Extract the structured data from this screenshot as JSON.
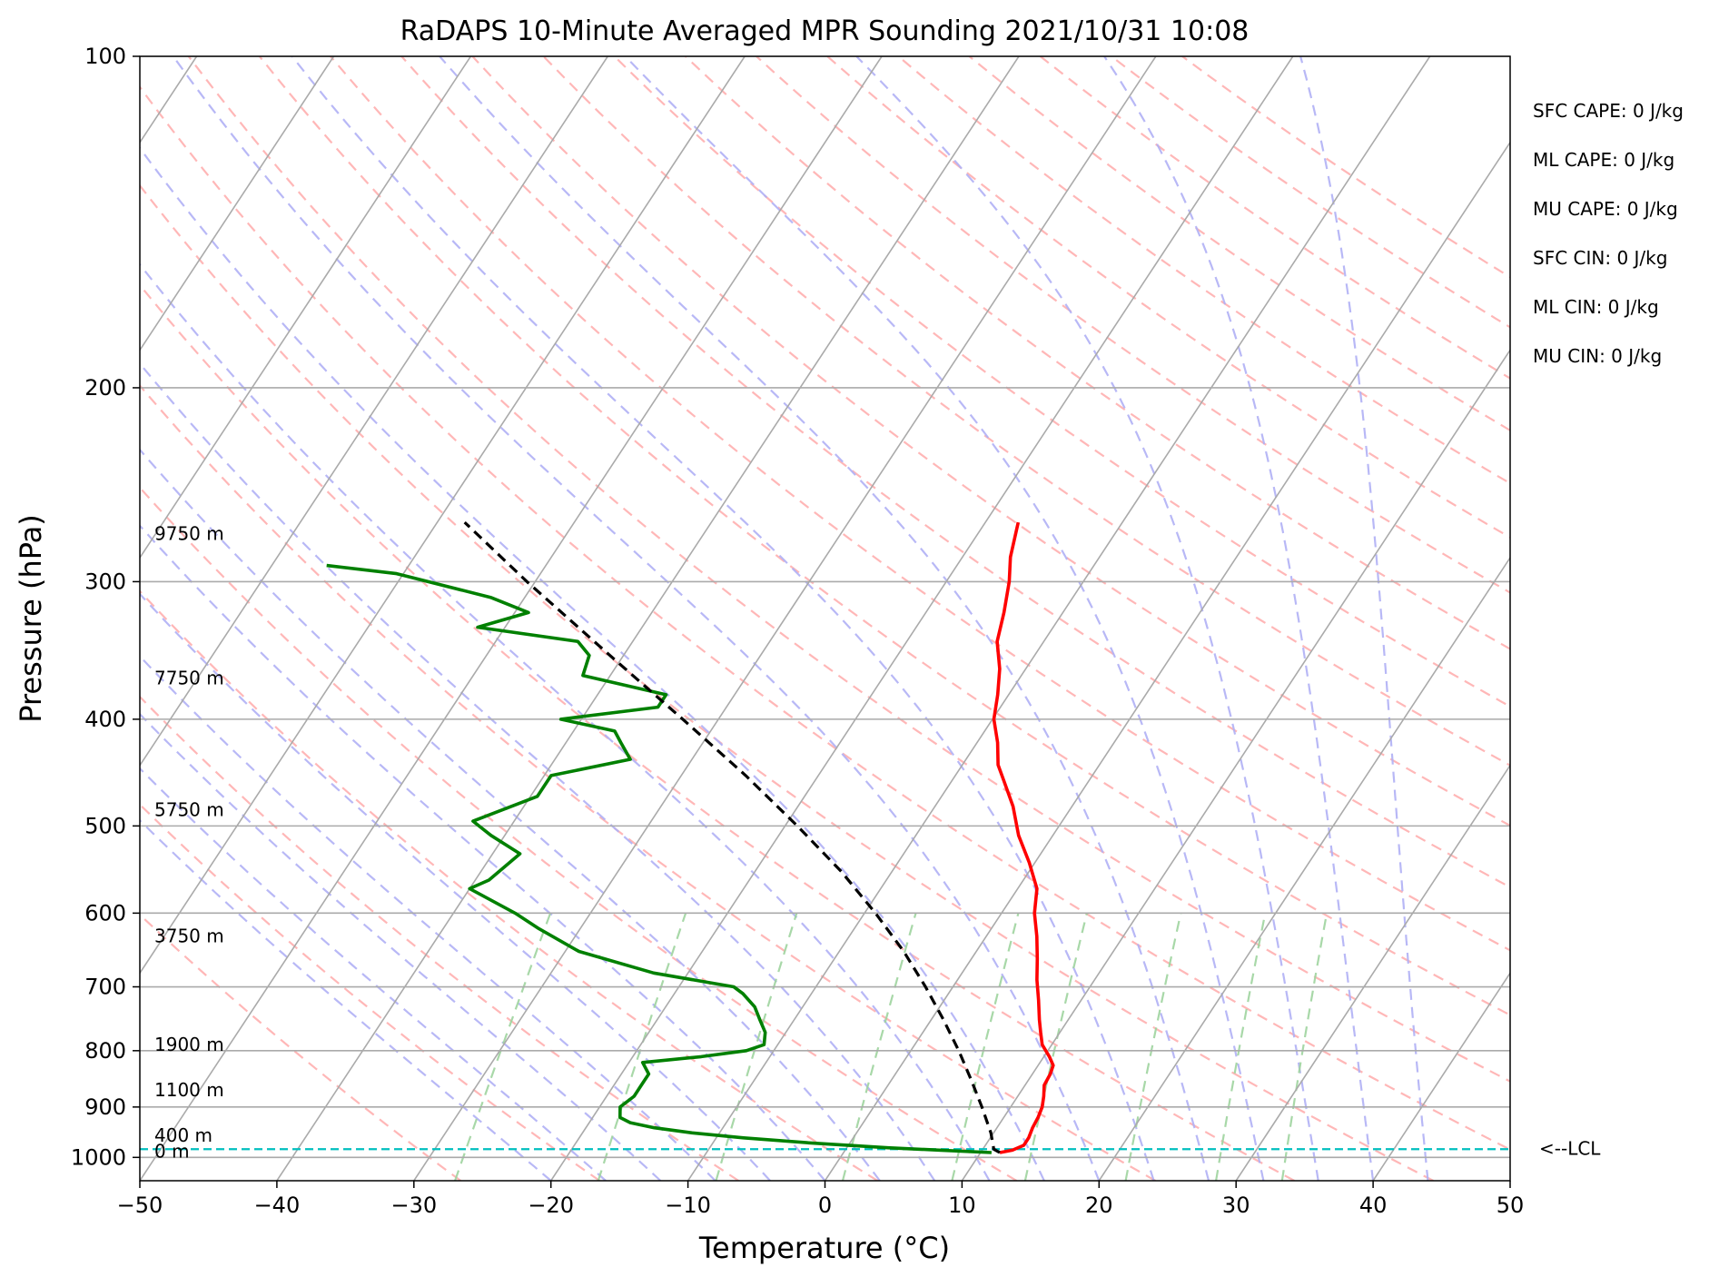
{
  "chart_data": {
    "type": "line",
    "title": "RaDAPS 10-Minute Averaged MPR Sounding 2021/10/31 10:08",
    "xlabel": "Temperature (°C)",
    "ylabel": "Pressure (hPa)",
    "xlim": [
      -50,
      50
    ],
    "ylim": [
      1050,
      100
    ],
    "y_scale": "log",
    "skew_t": true,
    "grid": true,
    "x_ticks": [
      -50,
      -40,
      -30,
      -20,
      -10,
      0,
      10,
      20,
      30,
      40,
      50
    ],
    "x_tick_labels": [
      "−50",
      "−40",
      "−30",
      "−20",
      "−10",
      "0",
      "10",
      "20",
      "30",
      "40",
      "50"
    ],
    "y_ticks": [
      100,
      200,
      300,
      400,
      500,
      600,
      700,
      800,
      900,
      1000
    ],
    "y_tick_labels": [
      "100",
      "200",
      "300",
      "400",
      "500",
      "600",
      "700",
      "800",
      "900",
      "1000"
    ],
    "height_labels": [
      {
        "text": "9750 m",
        "p": 275
      },
      {
        "text": "7750 m",
        "p": 372
      },
      {
        "text": "5750 m",
        "p": 490
      },
      {
        "text": "3750 m",
        "p": 638
      },
      {
        "text": "1900 m",
        "p": 800
      },
      {
        "text": "1100 m",
        "p": 880
      },
      {
        "text": "400 m",
        "p": 968
      },
      {
        "text": "0 m",
        "p": 1000
      }
    ],
    "indices": [
      "SFC CAPE: 0 J/kg",
      "ML CAPE: 0 J/kg",
      "MU CAPE: 0 J/kg",
      "SFC CIN: 0 J/kg",
      "ML CIN: 0 J/kg",
      "MU CIN: 0 J/kg"
    ],
    "lcl": {
      "label": "<--LCL",
      "p": 983
    },
    "colors": {
      "temperature": "#ff0000",
      "dewpoint": "#008000",
      "parcel": "#000000",
      "lcl": "#00bfbf",
      "isotherm": "#aaaaaa",
      "dry_adiabat": "#ffaaaa",
      "moist_adiabat": "#b0b0f5",
      "mixing_ratio": "#9fd49f"
    },
    "series": [
      {
        "key": "temperature",
        "points": [
          [
            990,
            11.4
          ],
          [
            985,
            12.2
          ],
          [
            975,
            12.8
          ],
          [
            960,
            12.8
          ],
          [
            940,
            12.6
          ],
          [
            920,
            12.5
          ],
          [
            900,
            12.3
          ],
          [
            880,
            11.9
          ],
          [
            860,
            11.4
          ],
          [
            840,
            11.3
          ],
          [
            825,
            11.1
          ],
          [
            810,
            10.4
          ],
          [
            790,
            9.3
          ],
          [
            770,
            8.6
          ],
          [
            750,
            7.9
          ],
          [
            720,
            6.9
          ],
          [
            690,
            5.8
          ],
          [
            660,
            4.8
          ],
          [
            630,
            3.7
          ],
          [
            600,
            2.4
          ],
          [
            570,
            1.4
          ],
          [
            540,
            -0.4
          ],
          [
            510,
            -2.5
          ],
          [
            480,
            -4.3
          ],
          [
            455,
            -6.2
          ],
          [
            440,
            -7.4
          ],
          [
            420,
            -8.5
          ],
          [
            400,
            -9.9
          ],
          [
            380,
            -10.8
          ],
          [
            360,
            -11.9
          ],
          [
            340,
            -13.4
          ],
          [
            320,
            -14.3
          ],
          [
            300,
            -15.4
          ],
          [
            285,
            -16.5
          ],
          [
            265,
            -17.6
          ]
        ]
      },
      {
        "key": "dewpoint",
        "points": [
          [
            990,
            10.8
          ],
          [
            985,
            7.0
          ],
          [
            980,
            3.0
          ],
          [
            970,
            -3.0
          ],
          [
            960,
            -8.0
          ],
          [
            950,
            -12.0
          ],
          [
            940,
            -15.0
          ],
          [
            930,
            -17.0
          ],
          [
            920,
            -18.0
          ],
          [
            900,
            -18.5
          ],
          [
            880,
            -18.0
          ],
          [
            860,
            -18.0
          ],
          [
            840,
            -18.0
          ],
          [
            820,
            -19.0
          ],
          [
            810,
            -15.0
          ],
          [
            800,
            -12.0
          ],
          [
            790,
            -11.0
          ],
          [
            770,
            -11.5
          ],
          [
            750,
            -12.5
          ],
          [
            730,
            -13.5
          ],
          [
            710,
            -15.0
          ],
          [
            700,
            -16.0
          ],
          [
            680,
            -22.5
          ],
          [
            650,
            -29.0
          ],
          [
            620,
            -33.0
          ],
          [
            600,
            -35.5
          ],
          [
            570,
            -40.0
          ],
          [
            560,
            -39.0
          ],
          [
            530,
            -38.0
          ],
          [
            510,
            -41.0
          ],
          [
            495,
            -43.0
          ],
          [
            470,
            -39.5
          ],
          [
            450,
            -39.5
          ],
          [
            435,
            -34.5
          ],
          [
            420,
            -36.0
          ],
          [
            410,
            -37.0
          ],
          [
            400,
            -41.5
          ],
          [
            390,
            -35.0
          ],
          [
            380,
            -35.0
          ],
          [
            365,
            -42.0
          ],
          [
            350,
            -42.5
          ],
          [
            340,
            -44.0
          ],
          [
            330,
            -52.0
          ],
          [
            320,
            -49.0
          ],
          [
            310,
            -52.5
          ],
          [
            295,
            -60.5
          ],
          [
            290,
            -66.0
          ]
        ]
      },
      {
        "key": "parcel",
        "points": [
          [
            990,
            11.4
          ],
          [
            983,
            10.8
          ],
          [
            950,
            9.8
          ],
          [
            900,
            7.9
          ],
          [
            850,
            5.8
          ],
          [
            800,
            3.5
          ],
          [
            750,
            0.9
          ],
          [
            700,
            -2.0
          ],
          [
            650,
            -5.3
          ],
          [
            600,
            -9.2
          ],
          [
            550,
            -13.7
          ],
          [
            500,
            -19.1
          ],
          [
            450,
            -25.3
          ],
          [
            400,
            -32.6
          ],
          [
            350,
            -41.0
          ],
          [
            300,
            -50.6
          ],
          [
            265,
            -58.0
          ]
        ]
      }
    ]
  }
}
